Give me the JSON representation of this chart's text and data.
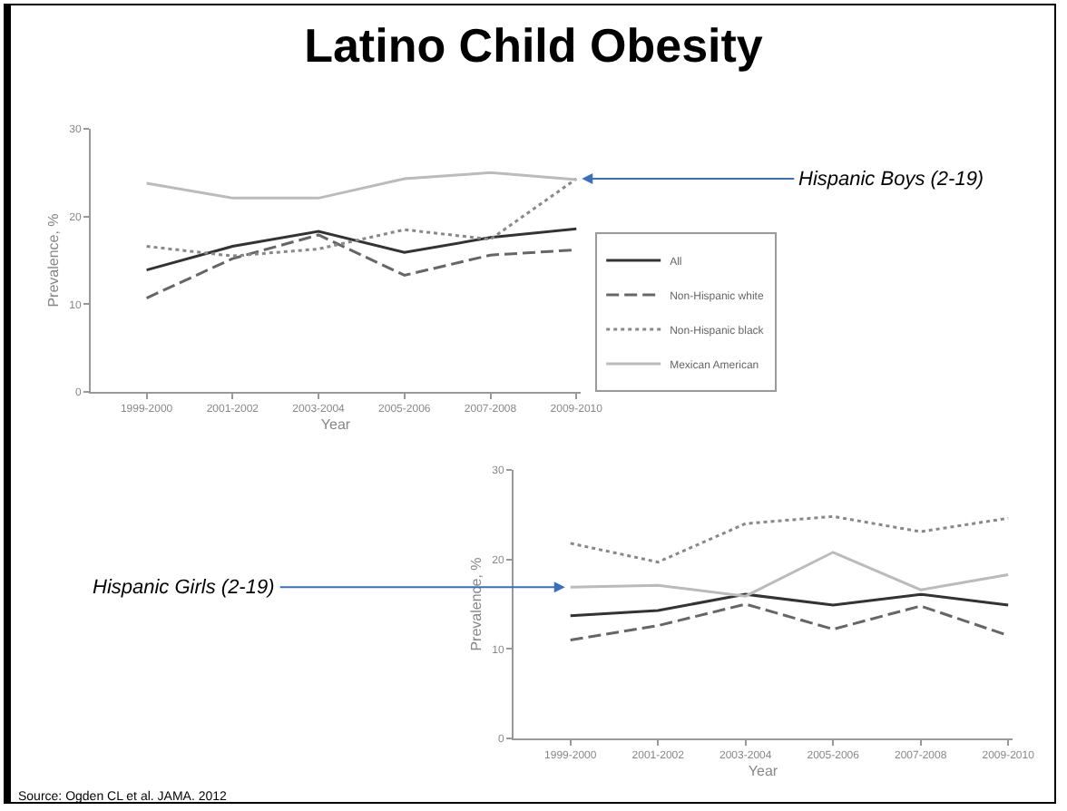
{
  "chart_data": [
    {
      "type": "line",
      "title": "Latino Child Obesity",
      "xlabel": "Year",
      "ylabel": "Prevalence, %",
      "categories": [
        "1999-2000",
        "2001-2002",
        "2003-2004",
        "2005-2006",
        "2007-2008",
        "2009-2010"
      ],
      "ylim": [
        0,
        30
      ],
      "yticks": [
        0,
        10,
        20,
        30
      ],
      "grid": false,
      "legend": "bottom right",
      "series": [
        {
          "name": "All",
          "color": "#333333",
          "line_style": "solid",
          "values": [
            13.9,
            16.6,
            18.3,
            15.9,
            17.6,
            18.6
          ]
        },
        {
          "name": "Non-Hispanic white",
          "color": "#666666",
          "line_style": "dashed",
          "values": [
            10.7,
            15.2,
            17.9,
            13.3,
            15.6,
            16.2
          ]
        },
        {
          "name": "Non-Hispanic black",
          "color": "#888888",
          "line_style": "dotted",
          "values": [
            16.6,
            15.5,
            16.3,
            18.5,
            17.4,
            24.3
          ]
        },
        {
          "name": "Mexican American",
          "color": "#bbbbbb",
          "line_style": "solid",
          "values": [
            23.8,
            22.1,
            22.1,
            24.3,
            25.0,
            24.2
          ]
        }
      ],
      "annotations": [
        {
          "text": "Hispanic Boys (2-19)",
          "x": "2009-2010",
          "y": 24.3
        }
      ]
    },
    {
      "type": "line",
      "xlabel": "Year",
      "ylabel": "Prevalence, %",
      "categories": [
        "1999-2000",
        "2001-2002",
        "2003-2004",
        "2005-2006",
        "2007-2008",
        "2009-2010"
      ],
      "ylim": [
        0,
        30
      ],
      "yticks": [
        0,
        10,
        20,
        30
      ],
      "grid": false,
      "legend": false,
      "series": [
        {
          "color": "#333333",
          "line_style": "solid",
          "values": [
            13.7,
            14.3,
            16.1,
            14.9,
            16.1,
            14.9
          ]
        },
        {
          "color": "#666666",
          "line_style": "dashed",
          "values": [
            11.0,
            12.6,
            15.0,
            12.2,
            14.8,
            11.5
          ]
        },
        {
          "color": "#888888",
          "line_style": "dotted",
          "values": [
            21.8,
            19.7,
            24.0,
            24.8,
            23.1,
            24.6
          ]
        },
        {
          "color": "#bbbbbb",
          "line_style": "solid",
          "values": [
            16.9,
            17.1,
            15.9,
            20.8,
            16.6,
            18.3
          ]
        }
      ],
      "annotations": [
        {
          "text": "Hispanic Girls (2-19)",
          "x": "1999-2000",
          "y": 16.9
        },
        "Source: Ogden CL et al. JAMA. 2012"
      ]
    }
  ]
}
